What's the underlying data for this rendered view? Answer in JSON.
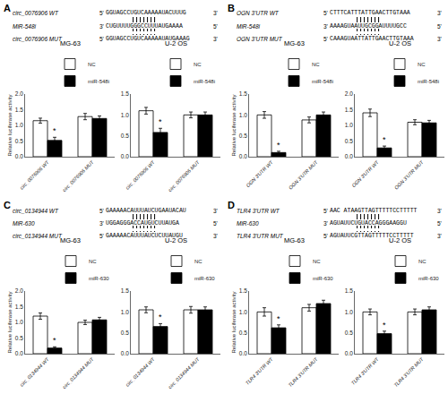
{
  "chart_data": [
    {
      "type": "panel",
      "title": "A",
      "rows": [
        [
          "circ_0076906 WT",
          "5'",
          "GGUAGCCUGUCAAAAAUACUUUG",
          "3'"
        ],
        [
          "MiR-548i",
          "3'",
          "CUGUUUUGGGCCUUUAUGAAAA",
          "5'"
        ],
        [
          "circ_0076906 MUT",
          "5'",
          "GGUAGCCUGUCAAAAAUAUGAAAG",
          "3'"
        ]
      ],
      "solid_lines": 7,
      "dotted_lines": 7,
      "charts": [
        {
          "type": "bar",
          "title": "MG-63",
          "ylabel": "Relative luciferase activity",
          "categories": [
            "circ_0076906 WT",
            "circ_0076906 MUT"
          ],
          "series": [
            {
              "name": "NC",
              "color": "white",
              "values": [
                1.15,
                1.28
              ],
              "errors": [
                0.08,
                0.1
              ]
            },
            {
              "name": "miR-548i",
              "color": "black",
              "values": [
                0.52,
                1.22
              ],
              "errors": [
                0.1,
                0.08
              ]
            }
          ],
          "ylim": [
            0,
            2.0
          ],
          "yticks": [
            {
              "value": 0,
              "label": "0.0"
            },
            0.5,
            {
              "value": 1.0,
              "label": "1.0"
            },
            1.5,
            {
              "value": 2.0,
              "label": "2.0"
            }
          ],
          "grid": false,
          "legend": "upper right",
          "annotations": [
            {
              "text": "*",
              "category": "circ_0076906 WT",
              "series": "miR-548i"
            }
          ]
        },
        {
          "type": "bar",
          "title": "U-2 OS",
          "categories": [
            "circ_0076906 WT",
            "circ_0076906 MUT"
          ],
          "series": [
            {
              "name": "NC",
              "color": "white",
              "values": [
                1.1,
                1.0
              ],
              "errors": [
                0.08,
                0.07
              ]
            },
            {
              "name": "miR-548i",
              "color": "black",
              "values": [
                0.58,
                1.0
              ],
              "errors": [
                0.1,
                0.07
              ]
            }
          ],
          "ylim": [
            0,
            1.5
          ],
          "yticks": [
            {
              "value": 0,
              "label": "0.0"
            },
            0.5,
            {
              "value": 1.0,
              "label": "1.0"
            },
            1.5
          ],
          "grid": false,
          "legend": "upper right",
          "annotations": [
            {
              "text": "*",
              "category": "circ_0076906 WT",
              "series": "miR-548i"
            }
          ]
        }
      ]
    },
    {
      "type": "panel",
      "title": "B",
      "rows": [
        [
          "OGN 3'UTR WT",
          "5'",
          "CTTTCATTTATTGAACTTGTAAA",
          "3'"
        ],
        [
          "MiR-548i",
          "3'",
          "AAAAGUAAUUGCGGAUUUUGCC",
          "5'"
        ],
        [
          "OGN 3'UTR MUT",
          "5'",
          "CAAAGUAATTATTGAACTTGTAAA",
          "3'"
        ]
      ],
      "solid_lines": 7,
      "dotted_lines": 7,
      "charts": [
        {
          "type": "bar",
          "title": "MG-63",
          "ylabel": "Relative luciferase activity",
          "categories": [
            "OGN 3'UTR WT",
            "OGN 3'UTR MUT"
          ],
          "series": [
            {
              "name": "NC",
              "color": "white",
              "values": [
                1.0,
                0.88
              ],
              "errors": [
                0.08,
                0.07
              ]
            },
            {
              "name": "miR-548i",
              "color": "black",
              "values": [
                0.1,
                1.0
              ],
              "errors": [
                0.03,
                0.07
              ]
            }
          ],
          "ylim": [
            0,
            1.5
          ],
          "yticks": [
            {
              "value": 0,
              "label": "0.0"
            },
            0.5,
            {
              "value": 1.0,
              "label": "1.0"
            },
            1.5
          ],
          "grid": false,
          "legend": "upper right",
          "annotations": [
            {
              "text": "*",
              "category": "OGN 3'UTR WT",
              "series": "miR-548i"
            }
          ]
        },
        {
          "type": "bar",
          "title": "U-2 OS",
          "categories": [
            "OGN 3'UTR WT",
            "OGN 3'UTR MUT"
          ],
          "series": [
            {
              "name": "NC",
              "color": "white",
              "values": [
                1.4,
                1.1
              ],
              "errors": [
                0.12,
                0.08
              ]
            },
            {
              "name": "miR-548i",
              "color": "black",
              "values": [
                0.28,
                1.08
              ],
              "errors": [
                0.06,
                0.08
              ]
            }
          ],
          "ylim": [
            0,
            2.0
          ],
          "yticks": [
            {
              "value": 0,
              "label": "0.0"
            },
            0.5,
            {
              "value": 1.0,
              "label": "1.0"
            },
            1.5,
            {
              "value": 2.0,
              "label": "2.0"
            }
          ],
          "grid": false,
          "legend": "upper right",
          "annotations": [
            {
              "text": "*",
              "category": "OGN 3'UTR WT",
              "series": "miR-548i"
            }
          ]
        }
      ]
    },
    {
      "type": "panel",
      "title": "C",
      "rows": [
        [
          "circ_0134944 WT",
          "5'",
          "GAAAAACAUUUAUCUGAAUACAU",
          "3'"
        ],
        [
          "MiR-630",
          "3'",
          "UGGAGGGACCAUGUCUUAUGA",
          "5'"
        ],
        [
          "circ_0134944 MUT",
          "5'",
          "GAAAAACAUUUAUCUCUUAUGU",
          "3'"
        ]
      ],
      "solid_lines": 7,
      "dotted_lines": 7,
      "charts": [
        {
          "type": "bar",
          "title": "MG-63",
          "ylabel": "Relative luciferase activity",
          "categories": [
            "circ_0134944 WT",
            "circ_0134944 MUT"
          ],
          "series": [
            {
              "name": "NC",
              "color": "white",
              "values": [
                1.2,
                1.0
              ],
              "errors": [
                0.1,
                0.07
              ]
            },
            {
              "name": "miR-630",
              "color": "black",
              "values": [
                0.18,
                1.08
              ],
              "errors": [
                0.04,
                0.08
              ]
            }
          ],
          "ylim": [
            0,
            2.0
          ],
          "yticks": [
            {
              "value": 0,
              "label": "0.0"
            },
            0.5,
            {
              "value": 1.0,
              "label": "1.0"
            },
            1.5,
            {
              "value": 2.0,
              "label": "2.0"
            }
          ],
          "grid": false,
          "legend": "upper right",
          "annotations": [
            {
              "text": "*",
              "category": "circ_0134944 WT",
              "series": "miR-630"
            }
          ]
        },
        {
          "type": "bar",
          "title": "U-2 OS",
          "categories": [
            "circ_0134944 WT",
            "circ_0134944 MUT"
          ],
          "series": [
            {
              "name": "NC",
              "color": "white",
              "values": [
                1.05,
                1.05
              ],
              "errors": [
                0.07,
                0.08
              ]
            },
            {
              "name": "miR-630",
              "color": "black",
              "values": [
                0.65,
                1.05
              ],
              "errors": [
                0.07,
                0.07
              ]
            }
          ],
          "ylim": [
            0,
            1.5
          ],
          "yticks": [
            {
              "value": 0,
              "label": "0.0"
            },
            0.5,
            {
              "value": 1.0,
              "label": "1.0"
            },
            1.5
          ],
          "grid": false,
          "legend": "upper right",
          "annotations": [
            {
              "text": "*",
              "category": "circ_0134944 WT",
              "series": "miR-630"
            }
          ]
        }
      ]
    },
    {
      "type": "panel",
      "title": "D",
      "rows": [
        [
          "TLR4 3'UTR WT",
          "5'",
          "AAC ATAAGTTAGTTTTTCCTTTTT",
          "3'"
        ],
        [
          "MiR-630",
          "3'",
          "AGUAUUCUGUACCAGGGAAGGU",
          "5'"
        ],
        [
          "TLR4 3'UTR MUT",
          "5'",
          "AGUAUUCGTTAGTTTTTCCTTTTT",
          "3'"
        ]
      ],
      "solid_lines": 7,
      "dotted_lines": 7,
      "charts": [
        {
          "type": "bar",
          "title": "MG-63",
          "ylabel": "Relative luciferase activity",
          "categories": [
            "TLR4 3'UTR WT",
            "TLR4 3'UTR MUT"
          ],
          "series": [
            {
              "name": "NC",
              "color": "white",
              "values": [
                1.0,
                1.1
              ],
              "errors": [
                0.1,
                0.08
              ]
            },
            {
              "name": "miR-630",
              "color": "black",
              "values": [
                0.62,
                1.2
              ],
              "errors": [
                0.07,
                0.08
              ]
            }
          ],
          "ylim": [
            0,
            1.5
          ],
          "yticks": [
            {
              "value": 0,
              "label": "0.0"
            },
            0.5,
            {
              "value": 1.0,
              "label": "1.0"
            },
            1.5
          ],
          "grid": false,
          "legend": "upper right",
          "annotations": [
            {
              "text": "*",
              "category": "TLR4 3'UTR WT",
              "series": "miR-630"
            }
          ]
        },
        {
          "type": "bar",
          "title": "U-2 OS",
          "categories": [
            "TLR4 3'UTR WT",
            "TLR4 3'UTR MUT"
          ],
          "series": [
            {
              "name": "NC",
              "color": "white",
              "values": [
                1.0,
                1.0
              ],
              "errors": [
                0.07,
                0.07
              ]
            },
            {
              "name": "miR-630",
              "color": "black",
              "values": [
                0.48,
                1.05
              ],
              "errors": [
                0.06,
                0.07
              ]
            }
          ],
          "ylim": [
            0,
            1.5
          ],
          "yticks": [
            {
              "value": 0,
              "label": "0.0"
            },
            0.5,
            {
              "value": 1.0,
              "label": "1.0"
            },
            1.5
          ],
          "grid": false,
          "legend": "upper right",
          "annotations": [
            {
              "text": "*",
              "category": "TLR4 3'UTR WT",
              "series": "miR-630"
            }
          ]
        }
      ]
    }
  ]
}
